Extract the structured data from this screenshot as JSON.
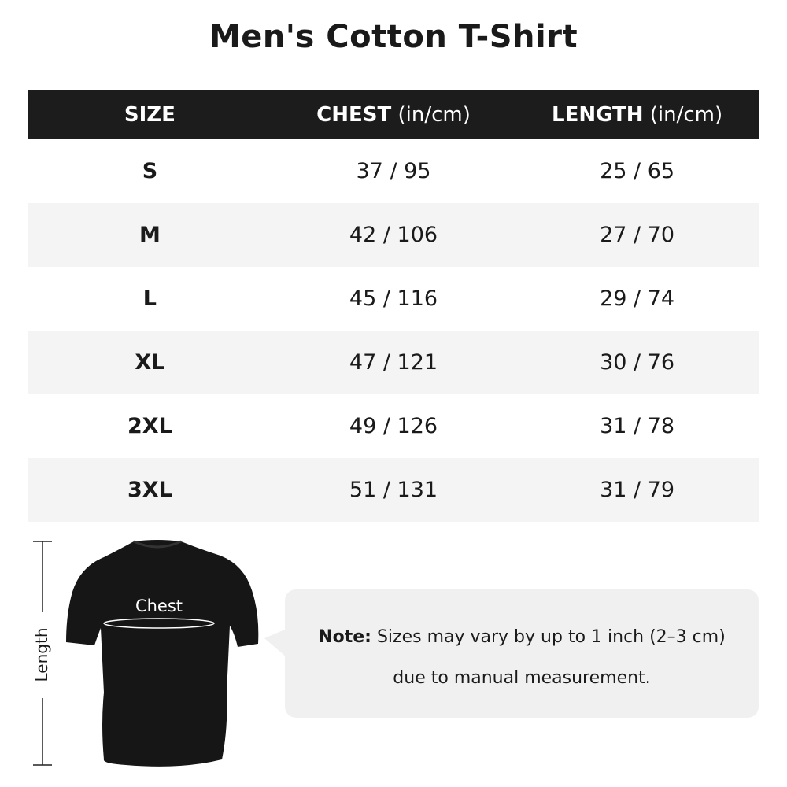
{
  "title": "Men's Cotton T-Shirt",
  "table": {
    "headers": [
      {
        "label": "SIZE",
        "unit": ""
      },
      {
        "label": "CHEST",
        "unit": " (in/cm)"
      },
      {
        "label": "LENGTH",
        "unit": " (in/cm)"
      }
    ],
    "rows": [
      {
        "size": "S",
        "chest": "37 / 95",
        "length": "25 / 65"
      },
      {
        "size": "M",
        "chest": "42 / 106",
        "length": "27 / 70"
      },
      {
        "size": "L",
        "chest": "45 / 116",
        "length": "29 / 74"
      },
      {
        "size": "XL",
        "chest": "47 / 121",
        "length": "30 / 76"
      },
      {
        "size": "2XL",
        "chest": "49 / 126",
        "length": "31 / 78"
      },
      {
        "size": "3XL",
        "chest": "51 / 131",
        "length": "31 / 79"
      }
    ]
  },
  "diagram": {
    "chest_label": "Chest",
    "length_label": "Length"
  },
  "note": {
    "prefix": "Note:",
    "line1": " Sizes may vary by up to 1 inch (2–3 cm)",
    "line2": "due to manual measurement."
  },
  "colors": {
    "header_bg": "#1c1c1c",
    "alt_row": "#f4f4f4",
    "note_bg": "#f0f0f0"
  }
}
